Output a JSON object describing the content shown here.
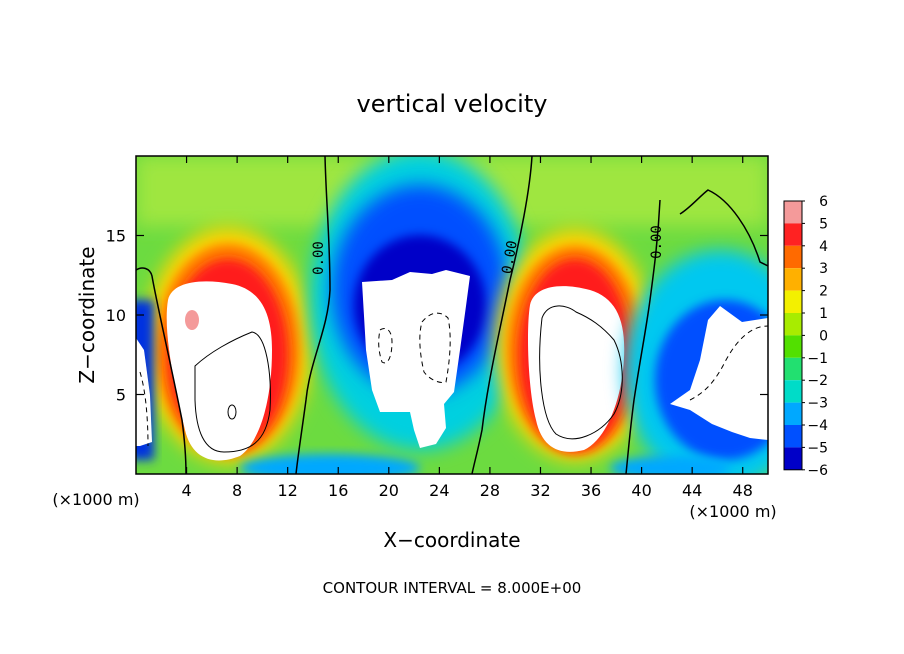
{
  "chart_data": {
    "type": "heatmap",
    "title": "vertical velocity",
    "xlabel": "X−coordinate",
    "ylabel": "Z−coordinate",
    "x_unit_left": "(×1000 m)",
    "x_unit_right": "(×1000 m)",
    "xlim": [
      0,
      50
    ],
    "ylim": [
      0,
      20
    ],
    "xticks": [
      4,
      8,
      12,
      16,
      20,
      24,
      28,
      32,
      36,
      40,
      44,
      48
    ],
    "yticks": [
      5,
      10,
      15
    ],
    "footer": "CONTOUR INTERVAL = 8.000E+00",
    "contour_label": "0.00",
    "colorbar": {
      "levels": [
        6,
        5,
        4,
        3,
        2,
        1,
        0,
        -1,
        -2,
        -3,
        -4,
        -5,
        -6
      ],
      "labels": [
        "6",
        "5",
        "4",
        "3",
        "2",
        "1",
        "0",
        "−1",
        "−2",
        "−3",
        "−4",
        "−5",
        "−6"
      ],
      "colors": [
        "#f49a9a",
        "#ff2222",
        "#ff6a00",
        "#ffb000",
        "#f3f000",
        "#a8ec00",
        "#52e000",
        "#22e070",
        "#00dcc8",
        "#00a8ff",
        "#0050ff",
        "#0000c8",
        "#8000b0"
      ]
    },
    "features": [
      {
        "kind": "updraft",
        "center_x": 7.5,
        "center_z": 8.5,
        "peak": 6
      },
      {
        "kind": "downdraft",
        "center_x": 22.5,
        "center_z": 11,
        "peak": -6
      },
      {
        "kind": "updraft",
        "center_x": 33.5,
        "center_z": 8,
        "peak": 6
      },
      {
        "kind": "downdraft",
        "center_x": 46,
        "center_z": 7,
        "peak": -6
      }
    ]
  }
}
